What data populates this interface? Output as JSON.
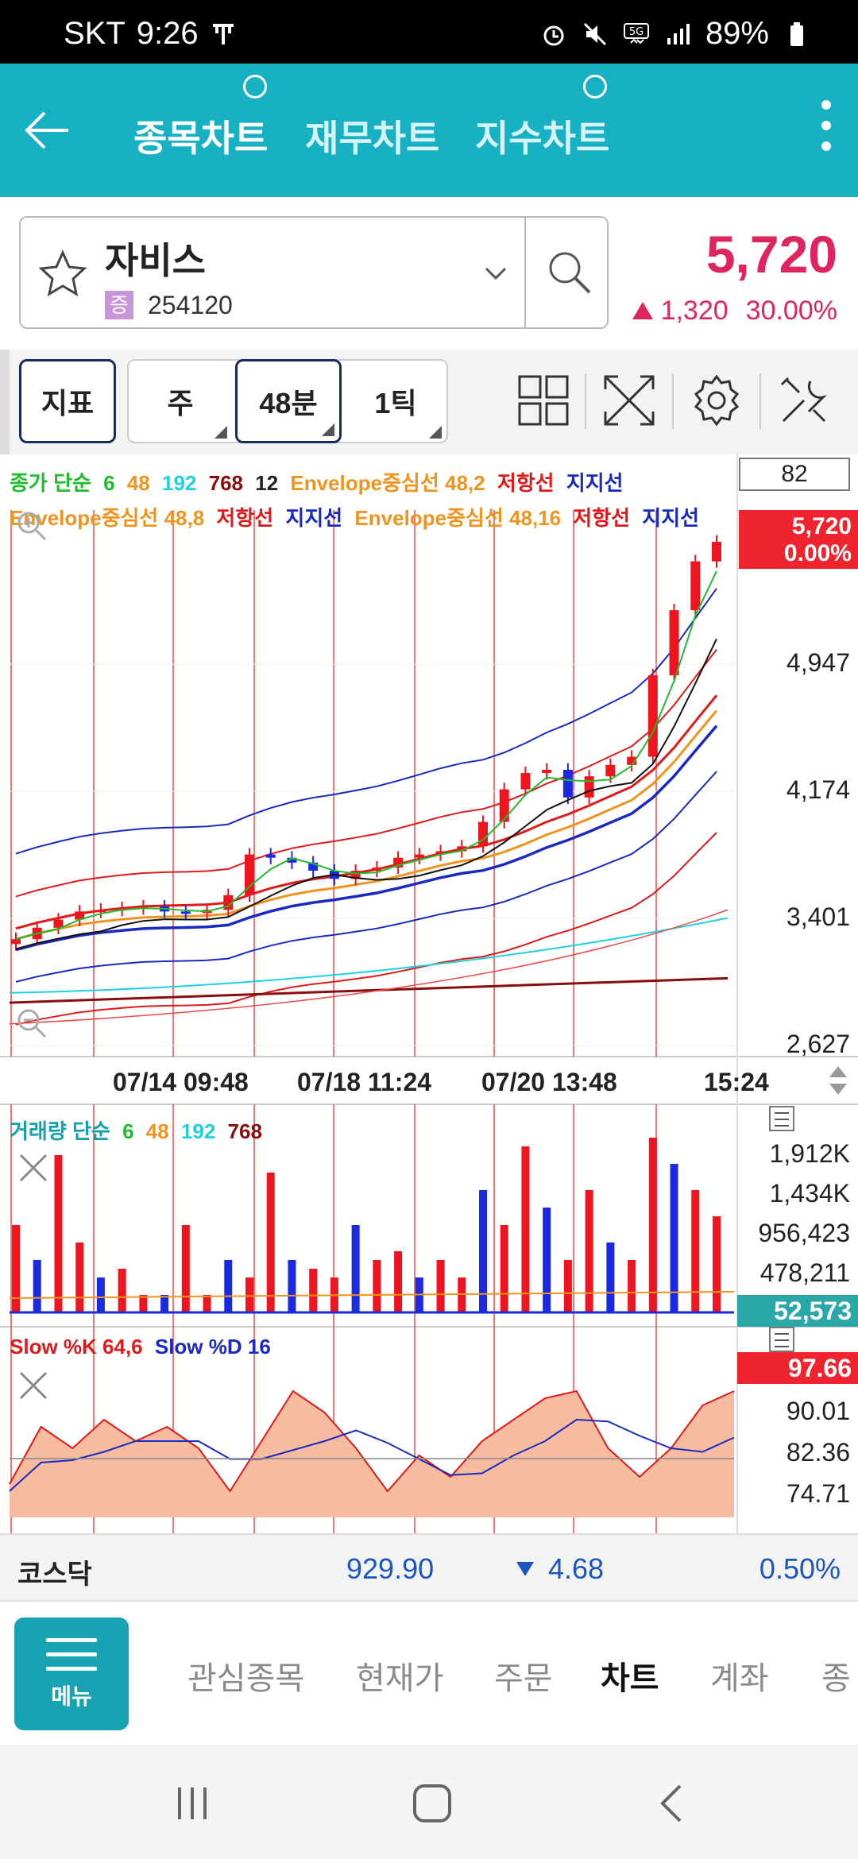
{
  "status": {
    "carrier": "SKT",
    "time": "9:26",
    "battery": "89%"
  },
  "tabs": [
    {
      "label": "종목차트",
      "active": true
    },
    {
      "label": "재무차트",
      "active": false
    },
    {
      "label": "지수차트",
      "active": false
    }
  ],
  "stock": {
    "name": "자비스",
    "market_badge": "증",
    "code": "254120",
    "price": "5,720",
    "change": "1,320",
    "change_pct": "30.00%"
  },
  "toolbar": {
    "indicator_label": "지표",
    "period_week": "주",
    "period_min": "48분",
    "period_tick": "1틱",
    "view_count": "82"
  },
  "price_chart": {
    "legend_line1": [
      {
        "text": "종가 단순",
        "color": "green"
      },
      {
        "text": "6",
        "color": "green"
      },
      {
        "text": "48",
        "color": "orange"
      },
      {
        "text": "192",
        "color": "cyan"
      },
      {
        "text": "768",
        "color": "darkred"
      },
      {
        "text": "12",
        "color": "black"
      },
      {
        "text": "Envelope중심선 48,2",
        "color": "orange"
      },
      {
        "text": "저항선",
        "color": "red"
      },
      {
        "text": "지지선",
        "color": "blue"
      }
    ],
    "legend_line2": [
      {
        "text": "Envelope중심선 48,8",
        "color": "orange"
      },
      {
        "text": "저항선",
        "color": "red"
      },
      {
        "text": "지지선",
        "color": "blue"
      },
      {
        "text": "Envelope중심선 48,16",
        "color": "orange"
      },
      {
        "text": "저항선",
        "color": "red"
      },
      {
        "text": "지지선",
        "color": "blue"
      }
    ],
    "current_tag_price": "5,720",
    "current_tag_pct": "0.00%",
    "y_labels": [
      "4,947",
      "4,174",
      "3,401",
      "2,627"
    ],
    "x_labels": [
      "07/14 09:48",
      "07/18 11:24",
      "07/20 13:48",
      "15:24"
    ]
  },
  "volume_chart": {
    "legend": [
      {
        "text": "거래량 단순",
        "color": "teal"
      },
      {
        "text": "6",
        "color": "green"
      },
      {
        "text": "48",
        "color": "orange"
      },
      {
        "text": "192",
        "color": "cyan"
      },
      {
        "text": "768",
        "color": "darkred"
      }
    ],
    "y_labels": [
      "1,912K",
      "1,434K",
      "956,423",
      "478,211"
    ],
    "current_tag": "52,573"
  },
  "stoch_chart": {
    "legend": [
      {
        "text": "Slow %K 64,6",
        "color": "red"
      },
      {
        "text": "Slow %D 16",
        "color": "blue"
      }
    ],
    "current_tag": "97.66",
    "y_labels": [
      "90.01",
      "82.36",
      "74.71"
    ]
  },
  "index": {
    "name": "코스닥",
    "value": "929.90",
    "change": "4.68",
    "pct": "0.50%"
  },
  "bottom_nav": {
    "menu_label": "메뉴",
    "items": [
      {
        "label": "관심종목",
        "active": false
      },
      {
        "label": "현재가",
        "active": false
      },
      {
        "label": "주문",
        "active": false
      },
      {
        "label": "차트",
        "active": true
      },
      {
        "label": "계좌",
        "active": false
      },
      {
        "label": "종",
        "active": false
      }
    ]
  },
  "colors": {
    "brand": "#17b1c3",
    "up": "#e0245e",
    "down": "#1a55c0"
  },
  "chart_data": {
    "type": "candlestick",
    "x_tick_labels": [
      "07/14 09:48",
      "07/18 11:24",
      "07/20 13:48",
      "15:24"
    ],
    "y_axis": {
      "ticks": [
        4947,
        4174,
        3401,
        2627
      ],
      "range": [
        2627,
        5720
      ]
    },
    "last_price": 5720,
    "close_approx": [
      3280,
      3350,
      3400,
      3450,
      3460,
      3470,
      3480,
      3450,
      3440,
      3460,
      3550,
      3800,
      3780,
      3750,
      3700,
      3650,
      3700,
      3720,
      3780,
      3800,
      3820,
      3850,
      4000,
      4200,
      4300,
      4320,
      4150,
      4280,
      4350,
      4400,
      4900,
      5300,
      5600,
      5720
    ]
  }
}
